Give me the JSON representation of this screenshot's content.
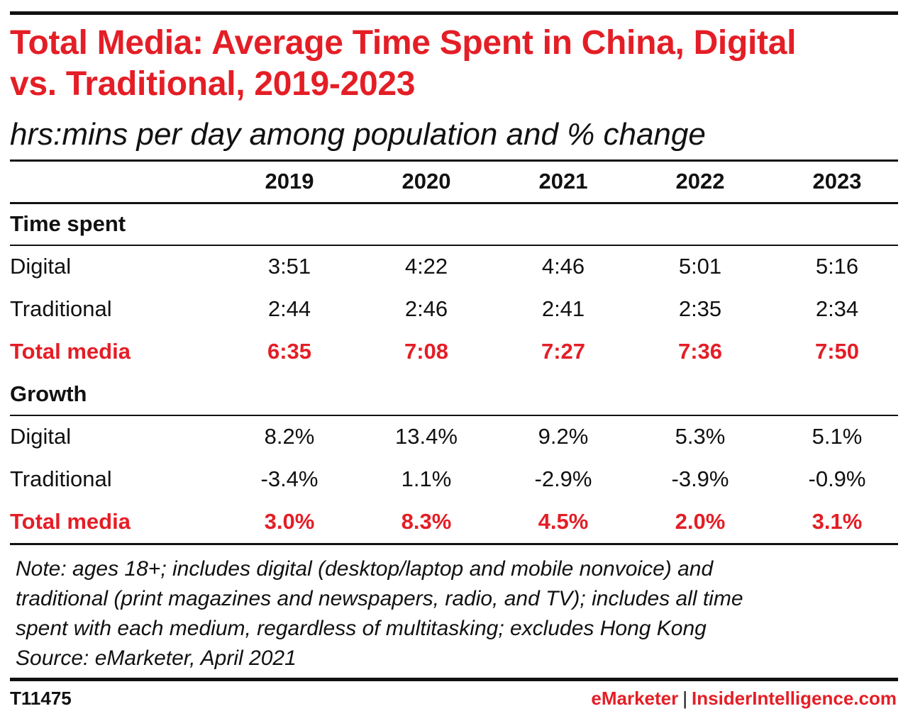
{
  "chart_data": {
    "type": "table",
    "title": "Total Media: Average Time Spent in China, Digital vs. Traditional, 2019-2023",
    "title_lines": [
      "Total Media: Average Time Spent in China, Digital",
      "vs. Traditional, 2019-2023"
    ],
    "subtitle": "hrs:mins per day among population and % change",
    "columns": [
      "2019",
      "2020",
      "2021",
      "2022",
      "2023"
    ],
    "sections": [
      {
        "name": "Time spent",
        "rows": [
          {
            "label": "Digital",
            "values": [
              "3:51",
              "4:22",
              "4:46",
              "5:01",
              "5:16"
            ]
          },
          {
            "label": "Traditional",
            "values": [
              "2:44",
              "2:46",
              "2:41",
              "2:35",
              "2:34"
            ]
          },
          {
            "label": "Total media",
            "values": [
              "6:35",
              "7:08",
              "7:27",
              "7:36",
              "7:50"
            ],
            "highlight": true
          }
        ]
      },
      {
        "name": "Growth",
        "rows": [
          {
            "label": "Digital",
            "values": [
              "8.2%",
              "13.4%",
              "9.2%",
              "5.3%",
              "5.1%"
            ]
          },
          {
            "label": "Traditional",
            "values": [
              "-3.4%",
              "1.1%",
              "-2.9%",
              "-3.9%",
              "-0.9%"
            ]
          },
          {
            "label": "Total media",
            "values": [
              "3.0%",
              "8.3%",
              "4.5%",
              "2.0%",
              "3.1%"
            ],
            "highlight": true
          }
        ]
      }
    ],
    "note_lines": [
      "Note: ages 18+; includes digital (desktop/laptop and mobile nonvoice) and",
      "traditional (print magazines and newspapers, radio, and TV); includes all time",
      "spent with each medium, regardless of multitasking; excludes Hong Kong",
      "Source: eMarketer, April 2021"
    ],
    "chart_id": "T11475",
    "brand": "eMarketer",
    "brand_separator": "|",
    "brand2": "InsiderIntelligence.com"
  },
  "colors": {
    "accent": "#e41e26",
    "text": "#111111",
    "rule": "#111111"
  }
}
